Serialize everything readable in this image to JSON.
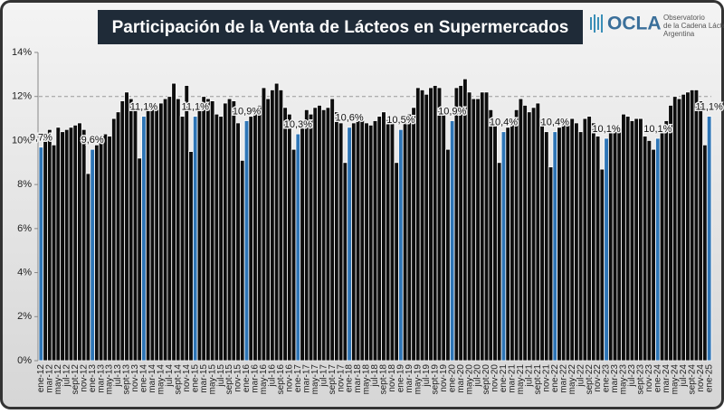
{
  "chart_data": {
    "type": "bar",
    "title": "Participación de la Venta de Lácteos en Supermercados",
    "logo": {
      "name": "OCLA",
      "lines": [
        "Observatorio",
        "de la Cadena Láctea",
        "Argentina"
      ]
    },
    "categories": [
      "ene-12",
      null,
      "mar-12",
      null,
      "may-12",
      null,
      "jul-12",
      null,
      "sept-12",
      null,
      "nov-12",
      null,
      "ene-13",
      null,
      "mar-13",
      null,
      "may-13",
      null,
      "jul-13",
      null,
      "sept-13",
      null,
      "nov-13",
      null,
      "ene-14",
      null,
      "mar-14",
      null,
      "may-14",
      null,
      "jul-14",
      null,
      "sept-14",
      null,
      "nov-14",
      null,
      "ene-15",
      null,
      "mar-15",
      null,
      "may-15",
      null,
      "jul-15",
      null,
      "sept-15",
      null,
      "nov-15",
      null,
      "ene-16",
      null,
      "mar-16",
      null,
      "may-16",
      null,
      "jul-16",
      null,
      "sept-16",
      null,
      "nov-16",
      null,
      "ene-17",
      null,
      "mar-17",
      null,
      "may-17",
      null,
      "jul-17",
      null,
      "sept-17",
      null,
      "nov-17",
      null,
      "ene-18",
      null,
      "mar-18",
      null,
      "may-18",
      null,
      "jul-18",
      null,
      "sept-18",
      null,
      "nov-18",
      null,
      "ene-19",
      null,
      "mar-19",
      null,
      "may-19",
      null,
      "jul-19",
      null,
      "sept-19",
      null,
      "nov-19",
      null,
      "ene-20",
      null,
      "mar-20",
      null,
      "may-20",
      null,
      "jul-20",
      null,
      "sept-20",
      null,
      "nov-20",
      null,
      "ene-21",
      null,
      "mar-21",
      null,
      "may-21",
      null,
      "jul-21",
      null,
      "sept-21",
      null,
      "nov-21",
      null,
      "ene-22",
      null,
      "mar-22",
      null,
      "may-22",
      null,
      "jul-22",
      null,
      "sept-22",
      null,
      "nov-22",
      null,
      "ene-23",
      null,
      "mar-23",
      null,
      "may-23",
      null,
      "jul-23",
      null,
      "sept-23",
      null,
      "nov-23",
      null,
      "ene-24",
      null,
      "mar-24",
      null,
      "may-24",
      null,
      "jul-24",
      null,
      "sept-24",
      null,
      "nov-24",
      null,
      "ene-25"
    ],
    "values": [
      9.7,
      10.1,
      10.5,
      9.8,
      10.6,
      10.4,
      10.5,
      10.6,
      10.7,
      10.8,
      10.5,
      8.5,
      9.6,
      9.8,
      9.9,
      10.3,
      10.2,
      11.0,
      11.3,
      11.8,
      12.2,
      11.9,
      11.4,
      9.2,
      11.1,
      11.7,
      11.6,
      11.5,
      11.7,
      11.9,
      12.0,
      12.6,
      11.9,
      11.1,
      12.5,
      9.5,
      11.1,
      11.7,
      12.0,
      11.9,
      11.8,
      11.2,
      11.1,
      11.7,
      11.9,
      11.8,
      10.8,
      9.1,
      10.9,
      11.1,
      11.3,
      11.6,
      12.4,
      11.9,
      12.3,
      12.6,
      12.3,
      11.5,
      11.2,
      9.6,
      10.3,
      10.9,
      11.4,
      11.2,
      11.5,
      11.6,
      11.4,
      11.5,
      11.9,
      11.3,
      10.8,
      9.0,
      10.6,
      10.8,
      10.9,
      11.0,
      10.8,
      10.7,
      10.9,
      11.1,
      11.3,
      11.0,
      10.8,
      9.0,
      10.5,
      10.9,
      11.2,
      11.5,
      12.4,
      12.3,
      12.1,
      12.4,
      12.5,
      12.4,
      11.2,
      9.6,
      10.9,
      12.4,
      12.5,
      12.8,
      12.2,
      11.9,
      11.9,
      12.2,
      12.2,
      11.4,
      10.7,
      9.0,
      10.4,
      10.6,
      11.0,
      11.4,
      11.9,
      11.6,
      11.3,
      11.5,
      11.7,
      11.0,
      10.4,
      8.8,
      10.4,
      10.6,
      10.8,
      10.7,
      11.0,
      10.8,
      10.4,
      11.0,
      11.1,
      10.8,
      10.2,
      8.7,
      10.1,
      10.5,
      10.7,
      10.5,
      11.2,
      11.1,
      10.9,
      11.0,
      11.0,
      10.2,
      10.0,
      9.6,
      10.1,
      10.5,
      10.9,
      11.6,
      12.0,
      11.9,
      12.1,
      12.2,
      12.3,
      12.3,
      11.8,
      9.8,
      11.1
    ],
    "value_labels": [
      "9,7%",
      null,
      null,
      null,
      null,
      null,
      null,
      null,
      null,
      null,
      null,
      null,
      "9,6%",
      null,
      null,
      null,
      null,
      null,
      null,
      null,
      null,
      null,
      null,
      null,
      "11,1%",
      null,
      null,
      null,
      null,
      null,
      null,
      null,
      null,
      null,
      null,
      null,
      "11,1%",
      null,
      null,
      null,
      null,
      null,
      null,
      null,
      null,
      null,
      null,
      null,
      "10,9%",
      null,
      null,
      null,
      null,
      null,
      null,
      null,
      null,
      null,
      null,
      null,
      "10,3%",
      null,
      null,
      null,
      null,
      null,
      null,
      null,
      null,
      null,
      null,
      null,
      "10,6%",
      null,
      null,
      null,
      null,
      null,
      null,
      null,
      null,
      null,
      null,
      null,
      "10,5%",
      null,
      null,
      null,
      null,
      null,
      null,
      null,
      null,
      null,
      null,
      null,
      "10,9%",
      null,
      null,
      null,
      null,
      null,
      null,
      null,
      null,
      null,
      null,
      null,
      "10,4%",
      null,
      null,
      null,
      null,
      null,
      null,
      null,
      null,
      null,
      null,
      null,
      "10,4%",
      null,
      null,
      null,
      null,
      null,
      null,
      null,
      null,
      null,
      null,
      null,
      "10,1%",
      null,
      null,
      null,
      null,
      null,
      null,
      null,
      null,
      null,
      null,
      null,
      "10,1%",
      null,
      null,
      null,
      null,
      null,
      null,
      null,
      null,
      null,
      null,
      null,
      "11,1%"
    ],
    "color": "#0d0d0d",
    "highlight_color": "#2e75b6",
    "ylim": [
      0,
      14
    ],
    "yticks": [
      {
        "value": 0,
        "label": "0%"
      },
      {
        "value": 2,
        "label": "2%"
      },
      {
        "value": 4,
        "label": "4%"
      },
      {
        "value": 6,
        "label": "6%"
      },
      {
        "value": 8,
        "label": "8%"
      },
      {
        "value": 10,
        "label": "10%"
      },
      {
        "value": 12,
        "label": "12%"
      },
      {
        "value": 14,
        "label": "14%"
      }
    ],
    "reference_line": 12
  }
}
